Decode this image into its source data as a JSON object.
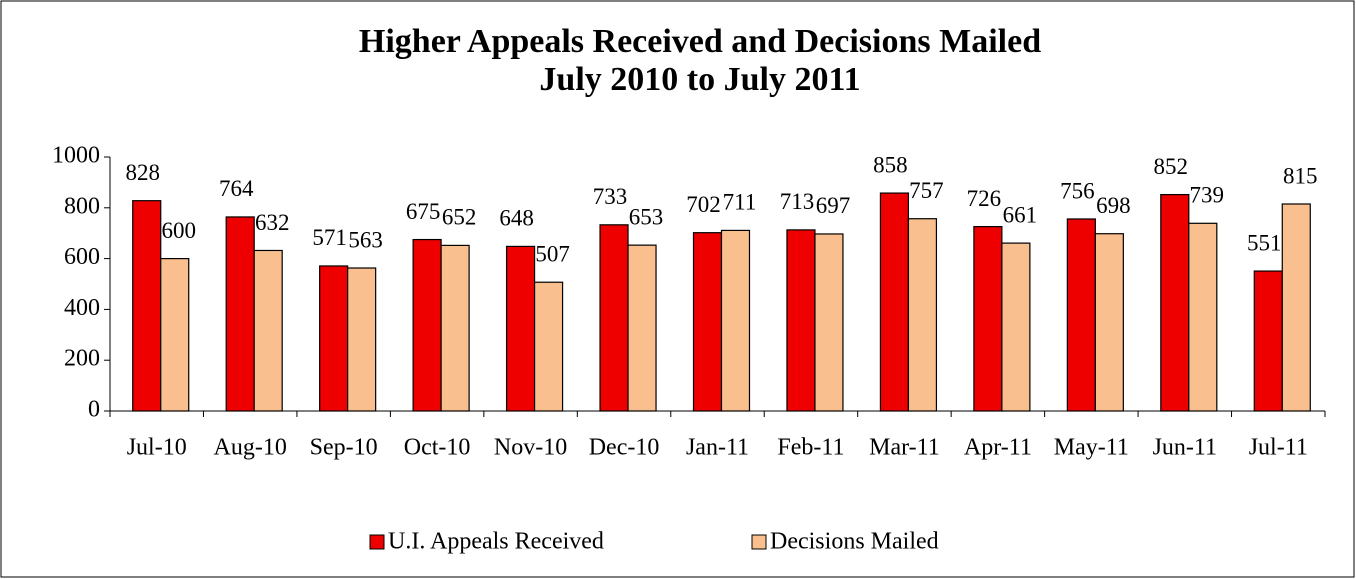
{
  "chart_data": {
    "type": "bar",
    "title": "Higher Appeals Received and Decisions Mailed",
    "subtitle": "July 2010 to July 2011",
    "categories": [
      "Jul-10",
      "Aug-10",
      "Sep-10",
      "Oct-10",
      "Nov-10",
      "Dec-10",
      "Jan-11",
      "Feb-11",
      "Mar-11",
      "Apr-11",
      "May-11",
      "Jun-11",
      "Jul-11"
    ],
    "series": [
      {
        "name": "U.I. Appeals Received",
        "color": "#ee0000",
        "values": [
          828,
          764,
          571,
          675,
          648,
          733,
          702,
          713,
          858,
          726,
          756,
          852,
          551
        ]
      },
      {
        "name": "Decisions Mailed",
        "color": "#f9bf8f",
        "values": [
          600,
          632,
          563,
          652,
          507,
          653,
          711,
          697,
          757,
          661,
          698,
          739,
          815
        ]
      }
    ],
    "ylim": [
      0,
      1000
    ],
    "yticks": [
      0,
      200,
      400,
      600,
      800,
      1000
    ],
    "grid": false,
    "legend": "bottom"
  }
}
